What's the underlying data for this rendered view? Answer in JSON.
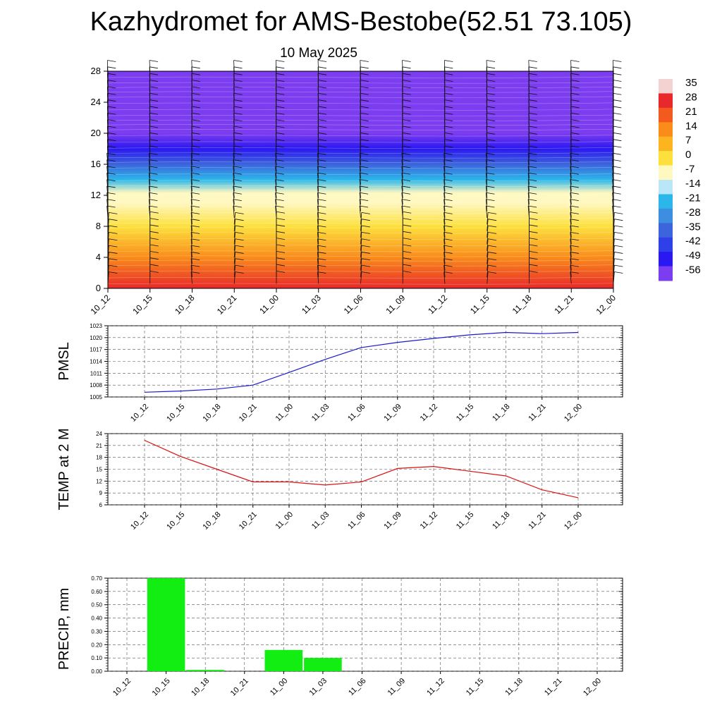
{
  "title": "Kazhydromet for AMS-Bestobe(52.51 73.105)",
  "subtitle": "10 May 2025",
  "time_labels": [
    "10_12",
    "10_15",
    "10_18",
    "10_21",
    "11_00",
    "11_03",
    "11_06",
    "11_09",
    "11_12",
    "11_15",
    "11_18",
    "11_21",
    "12_00"
  ],
  "chart_data": [
    {
      "type": "heatmap",
      "ylim": [
        0,
        28
      ],
      "y_ticks": [
        "0",
        "4",
        "8",
        "12",
        "16",
        "20",
        "24",
        "28"
      ],
      "x": [
        "10_12",
        "10_15",
        "10_18",
        "10_21",
        "11_00",
        "11_03",
        "11_06",
        "11_09",
        "11_12",
        "11_15",
        "11_18",
        "11_21",
        "12_00"
      ],
      "colorbar": {
        "labels": [
          "35",
          "28",
          "21",
          "14",
          "7",
          "0",
          "-7",
          "-14",
          "-21",
          "-28",
          "-35",
          "-42",
          "-49",
          "-56"
        ],
        "colors": [
          "#f4d2d2",
          "#e8282a",
          "#f25a1e",
          "#fa8c1a",
          "#fcb51e",
          "#fde03c",
          "#fff8c0",
          "#b9e6f8",
          "#2bb7ea",
          "#3c8ee0",
          "#3c64dc",
          "#3040e8",
          "#2a18f0",
          "#7c3cf0"
        ]
      },
      "levels_temp": [
        {
          "y": 0,
          "temp": 30
        },
        {
          "y": 4,
          "temp": 14
        },
        {
          "y": 8,
          "temp": 5
        },
        {
          "y": 11,
          "temp": -2
        },
        {
          "y": 12.3,
          "temp": -7
        },
        {
          "y": 14,
          "temp": -18
        },
        {
          "y": 16,
          "temp": -30
        },
        {
          "y": 18,
          "temp": -49
        },
        {
          "y": 20,
          "temp": -53
        },
        {
          "y": 24,
          "temp": -51
        },
        {
          "y": 28,
          "temp": -55
        }
      ],
      "wind_barbs": true
    },
    {
      "type": "line",
      "ylabel": "PMSL",
      "ylim": [
        1005,
        1023
      ],
      "y_ticks": [
        "1005",
        "1008",
        "1011",
        "1014",
        "1017",
        "1020",
        "1023"
      ],
      "grid": true,
      "x": [
        "10_12",
        "10_15",
        "10_18",
        "10_21",
        "11_00",
        "11_03",
        "11_06",
        "11_09",
        "11_12",
        "11_15",
        "11_18",
        "11_21",
        "12_00"
      ],
      "series": [
        {
          "values": [
            1006.2,
            1006.5,
            1007.0,
            1008.0,
            1011.2,
            1014.5,
            1017.5,
            1018.8,
            1019.8,
            1020.7,
            1021.3,
            1021.0,
            1021.3
          ],
          "color": "#1a1ad0"
        }
      ]
    },
    {
      "type": "line",
      "ylabel": "TEMP at 2 M",
      "ylim": [
        6,
        24
      ],
      "y_ticks": [
        "6",
        "9",
        "12",
        "15",
        "18",
        "21",
        "24"
      ],
      "grid": true,
      "x": [
        "10_12",
        "10_15",
        "10_18",
        "10_21",
        "11_00",
        "11_03",
        "11_06",
        "11_09",
        "11_12",
        "11_15",
        "11_18",
        "11_21",
        "12_00"
      ],
      "series": [
        {
          "values": [
            22.3,
            18.2,
            15.0,
            11.8,
            11.8,
            11.0,
            11.8,
            15.2,
            15.7,
            14.5,
            13.3,
            9.8,
            7.8
          ],
          "color": "#dd1010"
        }
      ]
    },
    {
      "type": "bar",
      "ylabel": "PRECIP, mm",
      "ylim": [
        0,
        0.7
      ],
      "y_ticks": [
        "0.00",
        "0.10",
        "0.20",
        "0.30",
        "0.40",
        "0.50",
        "0.60",
        "0.70"
      ],
      "grid": true,
      "categories": [
        "10_12",
        "10_15",
        "10_18",
        "10_21",
        "11_00",
        "11_03",
        "11_06",
        "11_09",
        "11_12",
        "11_15",
        "11_18",
        "11_21",
        "12_00"
      ],
      "values": [
        0,
        0.7,
        0.01,
        0,
        0.16,
        0.1,
        0,
        0,
        0,
        0,
        0,
        0,
        0
      ],
      "color": "#12ee12"
    }
  ]
}
